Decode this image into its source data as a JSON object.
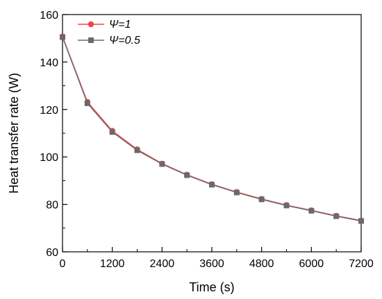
{
  "chart_data": {
    "type": "line",
    "xlabel": "Time (s)",
    "ylabel": "Heat transfer rate (W)",
    "xlim": [
      0,
      7200
    ],
    "ylim": [
      60,
      160
    ],
    "xticks": [
      0,
      1200,
      2400,
      3600,
      4800,
      6000,
      7200
    ],
    "yticks": [
      60,
      80,
      100,
      120,
      140,
      160
    ],
    "grid": false,
    "legend_position": "top-left",
    "x": [
      0,
      600,
      1200,
      1800,
      2400,
      3000,
      3600,
      4200,
      4800,
      5400,
      6000,
      6600,
      7200
    ],
    "series": [
      {
        "name": "Ψ=1",
        "marker": "circle",
        "color": "#f0434b",
        "values": [
          150.8,
          123.2,
          111.0,
          103.2,
          97.2,
          92.5,
          88.5,
          85.2,
          82.3,
          79.7,
          77.5,
          75.2,
          73.2
        ]
      },
      {
        "name": "Ψ=0.5",
        "marker": "square",
        "color": "#6a6a6a",
        "values": [
          150.5,
          122.6,
          110.5,
          102.8,
          97.0,
          92.3,
          88.3,
          85.0,
          82.1,
          79.5,
          77.3,
          75.0,
          73.0
        ]
      }
    ]
  }
}
